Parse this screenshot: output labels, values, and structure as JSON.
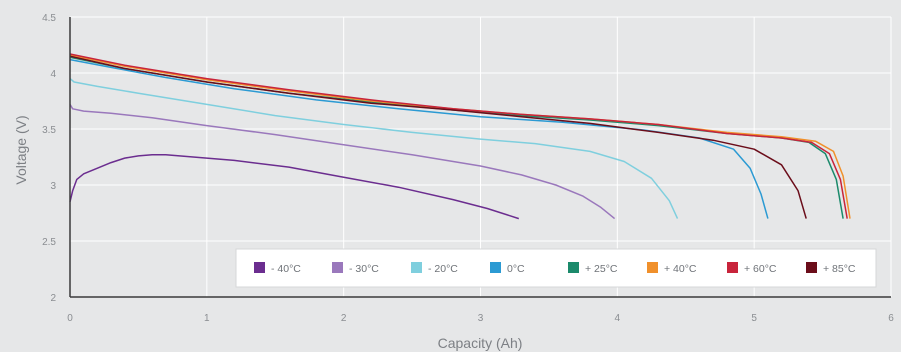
{
  "chart_data": {
    "type": "line",
    "title": "",
    "xlabel": "Capacity (Ah)",
    "ylabel": "Voltage (V)",
    "xlim": [
      0,
      6
    ],
    "ylim": [
      2,
      4.5
    ],
    "xticks": [
      "0",
      "1",
      "2",
      "3",
      "4",
      "5",
      "6"
    ],
    "yticks": [
      "2",
      "2.5",
      "3",
      "3.5",
      "4",
      "4.5"
    ],
    "grid": true,
    "legend_position": "bottom-right",
    "series": [
      {
        "name": "- 40°C",
        "color": "#6b2d8f",
        "x": [
          0,
          0.02,
          0.05,
          0.1,
          0.2,
          0.3,
          0.4,
          0.5,
          0.6,
          0.7,
          0.9,
          1.2,
          1.6,
          2.0,
          2.4,
          2.8,
          3.05,
          3.28
        ],
        "y": [
          2.85,
          2.95,
          3.05,
          3.1,
          3.15,
          3.2,
          3.24,
          3.26,
          3.27,
          3.27,
          3.25,
          3.22,
          3.16,
          3.07,
          2.98,
          2.87,
          2.79,
          2.7
        ]
      },
      {
        "name": "- 30°C",
        "color": "#9a78bc",
        "x": [
          0,
          0.02,
          0.1,
          0.3,
          0.6,
          1.0,
          1.5,
          2.0,
          2.5,
          3.0,
          3.3,
          3.55,
          3.75,
          3.88,
          3.98
        ],
        "y": [
          3.72,
          3.68,
          3.66,
          3.64,
          3.6,
          3.53,
          3.45,
          3.36,
          3.27,
          3.17,
          3.09,
          3.0,
          2.9,
          2.8,
          2.7
        ]
      },
      {
        "name": "- 20°C",
        "color": "#7fcfde",
        "x": [
          0,
          0.03,
          0.2,
          0.5,
          1.0,
          1.5,
          2.0,
          2.5,
          3.0,
          3.4,
          3.8,
          4.05,
          4.25,
          4.38,
          4.44
        ],
        "y": [
          3.95,
          3.92,
          3.88,
          3.82,
          3.72,
          3.62,
          3.54,
          3.47,
          3.41,
          3.37,
          3.3,
          3.21,
          3.06,
          2.86,
          2.7
        ]
      },
      {
        "name": "0°C",
        "color": "#2b9ad3",
        "x": [
          0,
          0.3,
          0.7,
          1.2,
          1.8,
          2.4,
          3.0,
          3.6,
          4.2,
          4.6,
          4.85,
          4.97,
          5.05,
          5.1
        ],
        "y": [
          4.12,
          4.05,
          3.96,
          3.86,
          3.76,
          3.68,
          3.61,
          3.56,
          3.49,
          3.42,
          3.32,
          3.15,
          2.92,
          2.7
        ]
      },
      {
        "name": "+ 25°C",
        "color": "#1b8a6b",
        "x": [
          0,
          0.4,
          1.0,
          1.6,
          2.2,
          2.8,
          3.3,
          3.8,
          4.3,
          4.8,
          5.2,
          5.4,
          5.52,
          5.6,
          5.65
        ],
        "y": [
          4.14,
          4.04,
          3.92,
          3.82,
          3.74,
          3.67,
          3.62,
          3.58,
          3.53,
          3.46,
          3.42,
          3.38,
          3.28,
          3.05,
          2.7
        ]
      },
      {
        "name": "+ 40°C",
        "color": "#f0902b",
        "x": [
          0,
          0.4,
          1.0,
          1.6,
          2.2,
          2.8,
          3.3,
          3.8,
          4.3,
          4.8,
          5.2,
          5.45,
          5.58,
          5.65,
          5.7
        ],
        "y": [
          4.16,
          4.06,
          3.94,
          3.84,
          3.75,
          3.68,
          3.63,
          3.59,
          3.54,
          3.47,
          3.43,
          3.39,
          3.3,
          3.08,
          2.7
        ]
      },
      {
        "name": "+ 60°C",
        "color": "#c8243b",
        "x": [
          0,
          0.4,
          1.0,
          1.6,
          2.2,
          2.8,
          3.3,
          3.8,
          4.3,
          4.8,
          5.2,
          5.42,
          5.55,
          5.63,
          5.68
        ],
        "y": [
          4.17,
          4.07,
          3.95,
          3.85,
          3.76,
          3.68,
          3.63,
          3.59,
          3.54,
          3.46,
          3.42,
          3.38,
          3.28,
          3.05,
          2.7
        ]
      },
      {
        "name": "+ 85°C",
        "color": "#6b0d1a",
        "x": [
          0,
          0.4,
          1.0,
          1.6,
          2.2,
          2.8,
          3.3,
          3.8,
          4.3,
          4.7,
          5.0,
          5.2,
          5.32,
          5.38
        ],
        "y": [
          4.15,
          4.04,
          3.92,
          3.82,
          3.73,
          3.67,
          3.61,
          3.55,
          3.47,
          3.4,
          3.32,
          3.18,
          2.95,
          2.7
        ]
      }
    ]
  }
}
